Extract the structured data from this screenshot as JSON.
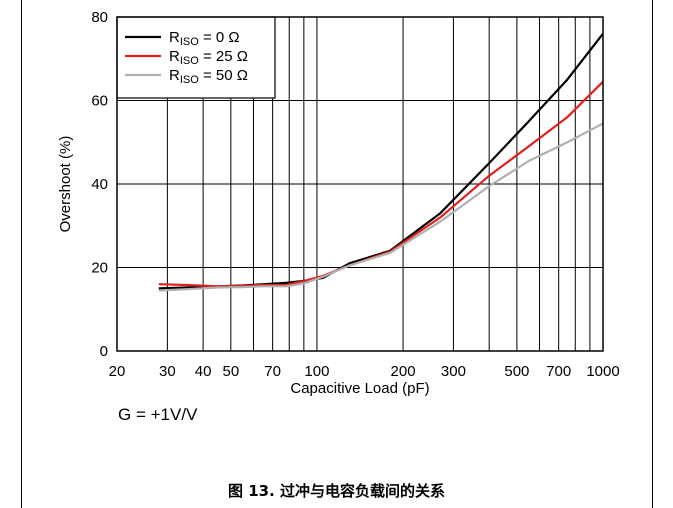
{
  "caption": "图 13. 过冲与电容负载间的关系",
  "gain_note": "G = +1V/V",
  "colors": {
    "grid": "#000000",
    "black": "#000000",
    "red": "#e0201c",
    "gray": "#b0b0b0"
  },
  "chart_data": {
    "type": "line",
    "title": "",
    "xlabel": "Capacitive Load (pF)",
    "ylabel": "Overshoot (%)",
    "xscale": "log",
    "xlim": [
      20,
      1000
    ],
    "ylim": [
      0,
      80
    ],
    "xticks": [
      20,
      30,
      40,
      50,
      70,
      100,
      200,
      300,
      500,
      700,
      1000
    ],
    "xtick_labels": [
      "20",
      "30",
      "40",
      "50",
      "70",
      "100",
      "200",
      "300",
      "500",
      "700",
      "1000"
    ],
    "yticks": [
      0,
      20,
      40,
      60,
      80
    ],
    "ytick_labels": [
      "0",
      "20",
      "40",
      "60",
      "80"
    ],
    "grid": true,
    "legend_position": "top-left",
    "series": [
      {
        "name": "R",
        "sub": "ISO",
        "suffix": " = 0 Ω",
        "color": "#000000",
        "x": [
          28,
          35,
          45,
          55,
          65,
          78,
          90,
          105,
          130,
          180,
          270,
          400,
          550,
          750,
          1000
        ],
        "y": [
          15.0,
          15.2,
          15.5,
          15.7,
          16.0,
          16.3,
          16.8,
          17.5,
          21.0,
          24.0,
          33.0,
          45.0,
          55.0,
          65.0,
          76.0
        ]
      },
      {
        "name": "R",
        "sub": "ISO",
        "suffix": " = 25 Ω",
        "color": "#e0201c",
        "x": [
          28,
          35,
          45,
          55,
          65,
          78,
          90,
          105,
          130,
          180,
          270,
          400,
          550,
          750,
          1000
        ],
        "y": [
          16.0,
          15.8,
          15.5,
          15.6,
          15.8,
          15.8,
          16.8,
          18.0,
          20.5,
          23.8,
          32.0,
          42.0,
          49.0,
          56.0,
          64.5
        ]
      },
      {
        "name": "R",
        "sub": "ISO",
        "suffix": " = 50 Ω",
        "color": "#b0b0b0",
        "x": [
          28,
          35,
          45,
          55,
          65,
          78,
          90,
          105,
          130,
          180,
          270,
          400,
          550,
          750,
          1000
        ],
        "y": [
          14.5,
          14.8,
          15.2,
          15.3,
          15.5,
          15.5,
          16.2,
          17.8,
          20.5,
          23.5,
          31.0,
          39.5,
          45.5,
          50.0,
          54.5
        ]
      }
    ]
  }
}
